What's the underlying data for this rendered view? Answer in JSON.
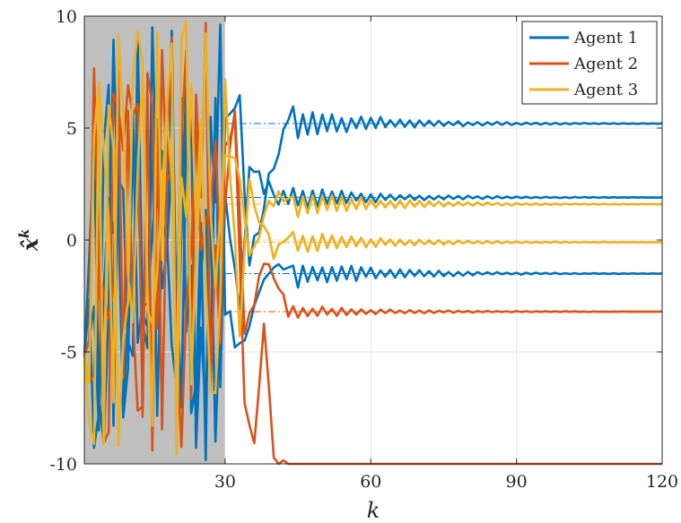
{
  "chart_data": {
    "type": "line",
    "title": "",
    "xlabel": "k",
    "ylabel_main": "x̂",
    "ylabel_sup": "k",
    "xlim": [
      1,
      120
    ],
    "ylim": [
      -10,
      10
    ],
    "x_ticks": [
      30,
      60,
      90,
      120
    ],
    "y_ticks": [
      -10,
      -5,
      0,
      5,
      10
    ],
    "x_tick_labels": [
      "30",
      "60",
      "90",
      "120"
    ],
    "y_tick_labels": [
      "-10",
      "-5",
      "0",
      "5",
      "10"
    ],
    "grid": true,
    "legend_position": "top-right",
    "shaded_region": {
      "x_start": 1,
      "x_end": 30,
      "color": "#bfbfbf"
    },
    "reference_levels": [
      {
        "y": 5.2,
        "color": "#0072BD",
        "x_start": 30
      },
      {
        "y": 1.9,
        "color": "#0072BD",
        "x_start": 30
      },
      {
        "y": -1.5,
        "color": "#0072BD",
        "x_start": 30
      },
      {
        "y": -3.2,
        "color": "#D95319",
        "x_start": 30
      },
      {
        "y": 1.6,
        "color": "#EDB120",
        "x_start": 30
      },
      {
        "y": -0.1,
        "color": "#EDB120",
        "x_start": 30
      }
    ],
    "series": [
      {
        "name": "Agent 1",
        "color": "#0072BD",
        "components": [
          {
            "random_until": 30,
            "seed": 11,
            "early": [
              30,
              5.0,
              33,
              6.0,
              35,
              -1.0,
              40,
              3.5,
              43,
              5.1
            ],
            "final": 5.2,
            "amp_decay": 0.7
          },
          {
            "random_until": 30,
            "seed": 12,
            "early": [
              30,
              2.0,
              33,
              -3.5,
              35,
              3.0,
              40,
              2.2,
              43,
              1.8
            ],
            "final": 1.9,
            "amp_decay": 0.5
          },
          {
            "random_until": 30,
            "seed": 13,
            "early": [
              30,
              -3.0,
              33,
              -5.0,
              35,
              -3.5,
              40,
              -1.2,
              43,
              -1.6
            ],
            "final": -1.5,
            "amp_decay": 0.6
          }
        ]
      },
      {
        "name": "Agent 2",
        "color": "#D95319",
        "components": [
          {
            "random_until": 30,
            "seed": 21,
            "early": [
              30,
              2.0,
              32,
              6.0,
              34,
              -3.8,
              38,
              -1.0,
              42,
              -2.7
            ],
            "final": -3.2,
            "amp_decay": 0.3
          },
          {
            "random_until": 30,
            "seed": 22,
            "early": [
              30,
              4.0,
              32,
              5.5,
              34,
              -7.5,
              36,
              -9.5,
              38,
              -3.5,
              40,
              -10,
              42,
              -10
            ],
            "final": -10,
            "amp_decay": 0.0
          }
        ]
      },
      {
        "name": "Agent 3",
        "color": "#EDB120",
        "components": [
          {
            "random_until": 30,
            "seed": 31,
            "early": [
              30,
              4.0,
              33,
              3.0,
              35,
              -0.5,
              40,
              1.9,
              43,
              1.4
            ],
            "final": 1.6,
            "amp_decay": 0.6
          },
          {
            "random_until": 30,
            "seed": 32,
            "early": [
              30,
              6.8,
              33,
              -4.0,
              35,
              2.5,
              40,
              -0.6,
              43,
              0.1
            ],
            "final": -0.1,
            "amp_decay": 0.5
          }
        ]
      }
    ]
  }
}
